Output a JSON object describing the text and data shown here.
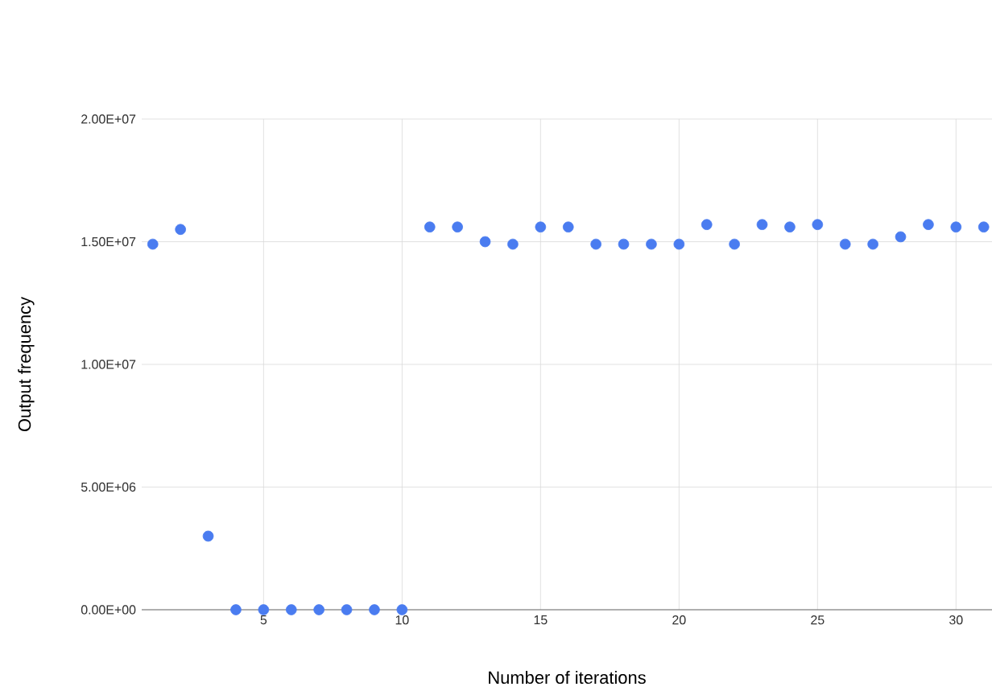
{
  "chart_data": {
    "type": "scatter",
    "xlabel": "Number of iterations",
    "ylabel": "Output frequency",
    "x": [
      1,
      2,
      3,
      4,
      5,
      6,
      7,
      8,
      9,
      10,
      11,
      12,
      13,
      14,
      15,
      16,
      17,
      18,
      19,
      20,
      21,
      22,
      23,
      24,
      25,
      26,
      27,
      28,
      29,
      30,
      31
    ],
    "series": [
      {
        "color": "#4a7cf0",
        "values": [
          14900000,
          15500000,
          3000000,
          0,
          0,
          0,
          0,
          0,
          0,
          0,
          15600000,
          15600000,
          15000000,
          14900000,
          15600000,
          15600000,
          14900000,
          14900000,
          14900000,
          14900000,
          15700000,
          14900000,
          15700000,
          15600000,
          15700000,
          14900000,
          14900000,
          15200000,
          15700000,
          15600000,
          15600000
        ]
      }
    ],
    "xlim": [
      0.6,
      31.3
    ],
    "xticks": [
      5,
      10,
      15,
      20,
      25,
      30
    ],
    "ylim": [
      0,
      20000000
    ],
    "yticks": [
      {
        "value": 0,
        "label": "0.00E+00"
      },
      {
        "value": 5000000,
        "label": "5.00E+06"
      },
      {
        "value": 10000000,
        "label": "1.00E+07"
      },
      {
        "value": 15000000,
        "label": "1.50E+07"
      },
      {
        "value": 20000000,
        "label": "2.00E+07"
      }
    ],
    "grid": true
  }
}
